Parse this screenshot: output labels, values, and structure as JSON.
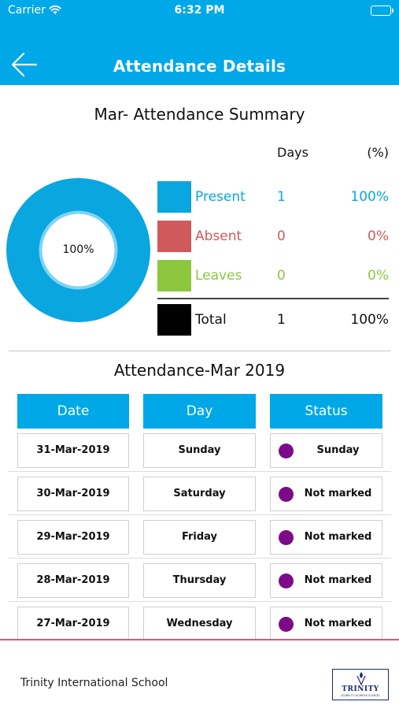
{
  "status_bar": {
    "carrier": "Carrier",
    "time": "6:32 PM"
  },
  "nav": {
    "title": "Attendance Details",
    "back_icon": "back-arrow-icon"
  },
  "summary": {
    "title": "Mar- Attendance Summary",
    "col_days": "Days",
    "col_percent": "(%)",
    "donut_label": "100%",
    "present_fraction": 1.0,
    "rows": [
      {
        "label": "Present",
        "days": "1",
        "percent": "100%",
        "color": "#0aa6e0"
      },
      {
        "label": "Absent",
        "days": "0",
        "percent": "0%",
        "color": "#cf5a5a"
      },
      {
        "label": "Leaves",
        "days": "0",
        "percent": "0%",
        "color": "#8dc63f"
      }
    ],
    "total": {
      "label": "Total",
      "days": "1",
      "percent": "100%",
      "color": "#000000"
    }
  },
  "table": {
    "title": "Attendance-Mar 2019",
    "headers": [
      "Date",
      "Day",
      "Status"
    ],
    "rows": [
      {
        "date": "31-Mar-2019",
        "day": "Sunday",
        "status": "Sunday"
      },
      {
        "date": "30-Mar-2019",
        "day": "Saturday",
        "status": "Not marked"
      },
      {
        "date": "29-Mar-2019",
        "day": "Friday",
        "status": "Not marked"
      },
      {
        "date": "28-Mar-2019",
        "day": "Thursday",
        "status": "Not marked"
      },
      {
        "date": "27-Mar-2019",
        "day": "Wednesday",
        "status": "Not marked"
      }
    ],
    "status_dot_color": "#7d0b87"
  },
  "footer": {
    "school_name": "Trinity International School",
    "logo_word": "TRINITY",
    "logo_tagline": "LEARN TO ACHIEVE & EXCEL"
  },
  "colors": {
    "accent": "#00a8e8",
    "footer_line": "#d65a7a"
  }
}
